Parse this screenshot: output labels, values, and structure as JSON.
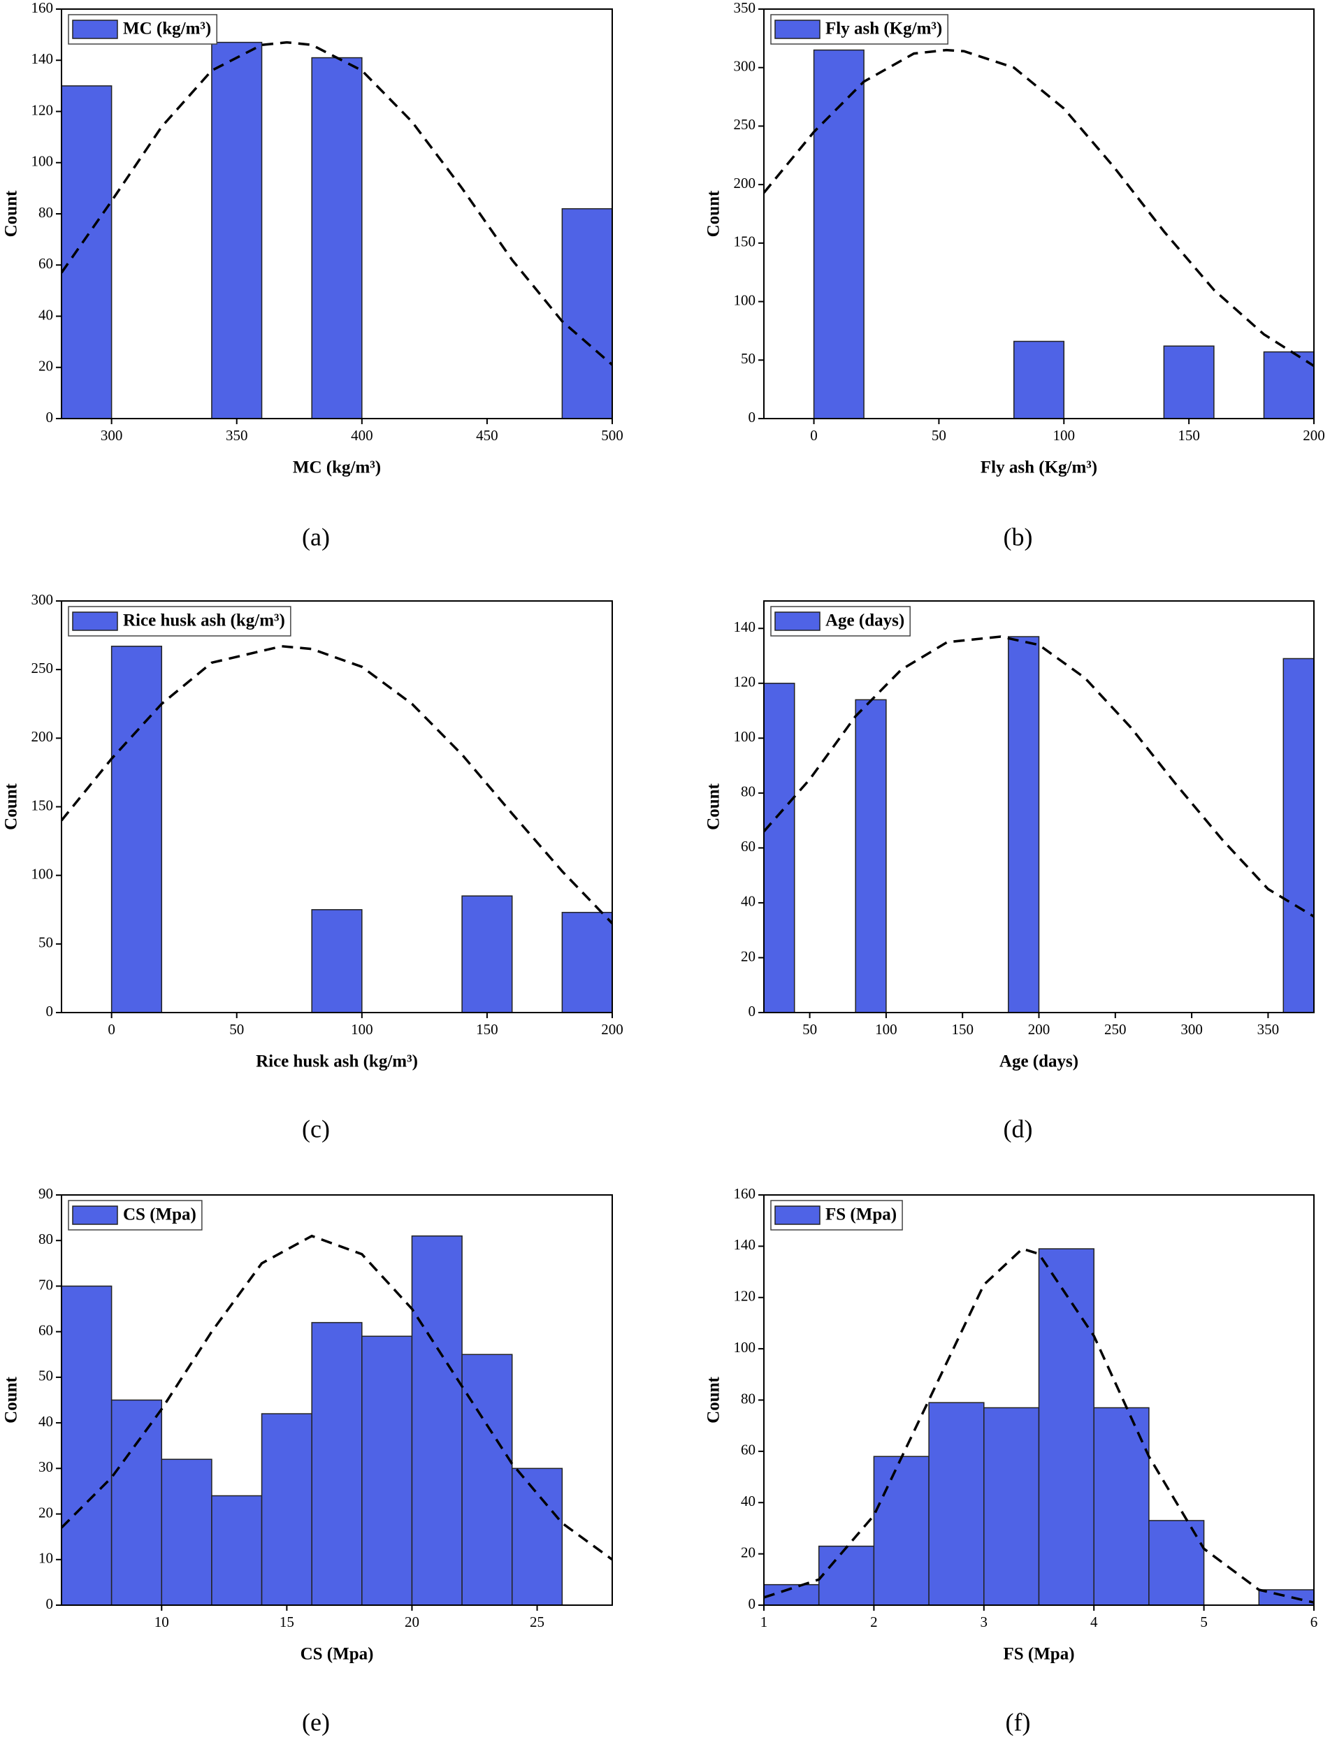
{
  "chart_data": [
    {
      "type": "histogram",
      "caption": "(a)",
      "x_label": "MC (kg/m³)",
      "y_label": "Count",
      "legend": "MC (kg/m³)",
      "legend_position": "top-left",
      "color": "#4f63e6",
      "bins": [
        280,
        300,
        320,
        340,
        360,
        380,
        400,
        420,
        440,
        460,
        480,
        500
      ],
      "counts": [
        130,
        0,
        0,
        147,
        0,
        141,
        0,
        0,
        0,
        0,
        82
      ],
      "xlim": [
        280,
        500
      ],
      "xticks": [
        300,
        350,
        400,
        450,
        500
      ],
      "ylim": [
        0,
        160
      ],
      "yticks": [
        0,
        20,
        40,
        60,
        80,
        100,
        120,
        140,
        160
      ],
      "fit": {
        "x": [
          280,
          300,
          320,
          340,
          360,
          370,
          380,
          400,
          420,
          440,
          460,
          480,
          500
        ],
        "y": [
          57,
          85,
          114,
          136,
          146,
          147,
          146,
          136,
          116,
          90,
          62,
          38,
          21
        ]
      }
    },
    {
      "type": "histogram",
      "caption": "(b)",
      "x_label": "Fly ash (Kg/m³)",
      "y_label": "Count",
      "legend": "Fly ash (Kg/m³)",
      "legend_position": "top-left",
      "color": "#4f63e6",
      "bins": [
        0,
        20,
        40,
        60,
        80,
        100,
        120,
        140,
        160,
        180,
        200
      ],
      "counts": [
        315,
        0,
        0,
        0,
        66,
        0,
        0,
        62,
        0,
        57
      ],
      "xlim": [
        -20,
        200
      ],
      "xticks": [
        0,
        50,
        100,
        150,
        200
      ],
      "ylim": [
        0,
        350
      ],
      "yticks": [
        0,
        50,
        100,
        150,
        200,
        250,
        300,
        350
      ],
      "fit": {
        "x": [
          -20,
          0,
          20,
          40,
          53,
          60,
          80,
          100,
          120,
          140,
          160,
          180,
          200
        ],
        "y": [
          193,
          245,
          288,
          312,
          315,
          314,
          300,
          265,
          215,
          160,
          110,
          72,
          45
        ]
      }
    },
    {
      "type": "histogram",
      "caption": "(c)",
      "x_label": "Rice husk ash (kg/m³)",
      "y_label": "Count",
      "legend": "Rice husk ash (kg/m³)",
      "legend_position": "top-left",
      "color": "#4f63e6",
      "bins": [
        0,
        20,
        40,
        60,
        80,
        100,
        120,
        140,
        160,
        180,
        200
      ],
      "counts": [
        267,
        0,
        0,
        0,
        75,
        0,
        0,
        85,
        0,
        73
      ],
      "xlim": [
        -20,
        200
      ],
      "xticks": [
        0,
        50,
        100,
        150,
        200
      ],
      "ylim": [
        0,
        300
      ],
      "yticks": [
        0,
        50,
        100,
        150,
        200,
        250,
        300
      ],
      "fit": {
        "x": [
          -20,
          0,
          20,
          40,
          68,
          80,
          100,
          120,
          140,
          160,
          180,
          200
        ],
        "y": [
          140,
          185,
          225,
          255,
          267,
          265,
          252,
          225,
          188,
          145,
          103,
          65
        ]
      }
    },
    {
      "type": "histogram",
      "caption": "(d)",
      "x_label": "Age (days)",
      "y_label": "Count",
      "legend": "Age (days)",
      "legend_position": "top-left",
      "color": "#4f63e6",
      "bins": [
        20,
        40,
        60,
        80,
        100,
        120,
        140,
        160,
        180,
        200,
        220,
        240,
        260,
        280,
        300,
        320,
        340,
        360,
        380
      ],
      "counts": [
        120,
        0,
        0,
        114,
        0,
        0,
        0,
        0,
        137,
        0,
        0,
        0,
        0,
        0,
        0,
        0,
        0,
        129
      ],
      "xlim": [
        20,
        380
      ],
      "xticks": [
        50,
        100,
        150,
        200,
        250,
        300,
        350
      ],
      "ylim": [
        0,
        150
      ],
      "yticks": [
        0,
        20,
        40,
        60,
        80,
        100,
        120,
        140
      ],
      "fit": {
        "x": [
          20,
          50,
          80,
          110,
          140,
          175,
          200,
          230,
          260,
          290,
          320,
          350,
          380
        ],
        "y": [
          66,
          85,
          108,
          125,
          135,
          137,
          134,
          122,
          104,
          83,
          63,
          45,
          35
        ]
      }
    },
    {
      "type": "histogram",
      "caption": "(e)",
      "x_label": "CS (Mpa)",
      "y_label": "Count",
      "legend": "CS (Mpa)",
      "legend_position": "top-left",
      "color": "#4f63e6",
      "bins": [
        6,
        8,
        10,
        12,
        14,
        16,
        18,
        20,
        22,
        24,
        26
      ],
      "counts": [
        70,
        45,
        32,
        24,
        42,
        62,
        59,
        81,
        55,
        30
      ],
      "xlim": [
        6,
        28
      ],
      "xticks": [
        10,
        15,
        20,
        25
      ],
      "ylim": [
        0,
        90
      ],
      "yticks": [
        0,
        10,
        20,
        30,
        40,
        50,
        60,
        70,
        80,
        90
      ],
      "fit": {
        "x": [
          6,
          8,
          10,
          12,
          14,
          16,
          18,
          20,
          22,
          24,
          26,
          28
        ],
        "y": [
          17,
          28,
          43,
          60,
          75,
          81,
          77,
          65,
          48,
          31,
          18,
          10
        ]
      }
    },
    {
      "type": "histogram",
      "caption": "(f)",
      "x_label": "FS (Mpa)",
      "y_label": "Count",
      "legend": "FS (Mpa)",
      "legend_position": "top-left",
      "color": "#4f63e6",
      "bins": [
        1,
        1.5,
        2,
        2.5,
        3,
        3.5,
        4,
        4.5,
        5,
        5.5,
        6
      ],
      "counts": [
        8,
        23,
        58,
        79,
        77,
        139,
        77,
        33,
        0,
        6
      ],
      "xlim": [
        1,
        6
      ],
      "xticks": [
        1,
        2,
        3,
        4,
        5,
        6
      ],
      "ylim": [
        0,
        160
      ],
      "yticks": [
        0,
        20,
        40,
        60,
        80,
        100,
        120,
        140,
        160
      ],
      "fit": {
        "x": [
          1,
          1.5,
          2,
          2.5,
          3,
          3.35,
          3.5,
          4,
          4.5,
          5,
          5.5,
          6
        ],
        "y": [
          3,
          10,
          35,
          80,
          125,
          139,
          137,
          105,
          58,
          22,
          6,
          1
        ]
      }
    }
  ]
}
